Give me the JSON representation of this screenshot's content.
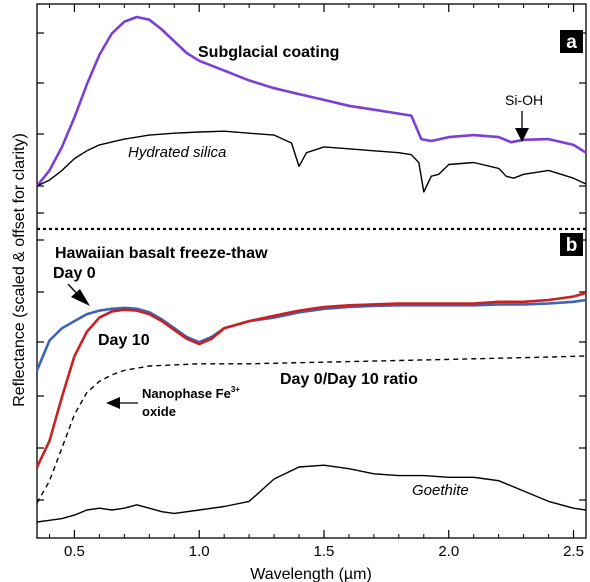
{
  "chart_data": {
    "type": "line",
    "xlabel": "Wavelength (µm)",
    "ylabel": "Reflectance (scaled & offset for clarity)",
    "xlim": [
      0.35,
      2.55
    ],
    "xticks": [
      "0.5",
      "1.0",
      "1.5",
      "2.0",
      "2.5"
    ],
    "panels": [
      {
        "tag": "a",
        "series": [
          {
            "name": "Subglacial coating",
            "color": "#7b3fd6",
            "x": [
              0.35,
              0.4,
              0.45,
              0.5,
              0.55,
              0.6,
              0.65,
              0.7,
              0.75,
              0.8,
              0.85,
              0.9,
              0.95,
              1.0,
              1.1,
              1.2,
              1.3,
              1.4,
              1.5,
              1.6,
              1.7,
              1.8,
              1.85,
              1.89,
              1.93,
              2.0,
              2.1,
              2.2,
              2.25,
              2.3,
              2.4,
              2.5,
              2.55
            ],
            "y": [
              0.0,
              0.4,
              1.0,
              1.75,
              2.6,
              3.35,
              3.9,
              4.2,
              4.32,
              4.25,
              4.0,
              3.7,
              3.4,
              3.2,
              2.95,
              2.7,
              2.5,
              2.35,
              2.2,
              2.05,
              1.95,
              1.85,
              1.8,
              1.2,
              1.15,
              1.25,
              1.3,
              1.25,
              1.12,
              1.18,
              1.2,
              1.05,
              0.85
            ]
          },
          {
            "name": "Hydrated silica",
            "color": "#000000",
            "x": [
              0.35,
              0.4,
              0.45,
              0.5,
              0.55,
              0.6,
              0.7,
              0.8,
              0.9,
              1.0,
              1.1,
              1.2,
              1.3,
              1.37,
              1.4,
              1.43,
              1.5,
              1.6,
              1.7,
              1.8,
              1.85,
              1.88,
              1.9,
              1.93,
              1.96,
              2.0,
              2.1,
              2.2,
              2.23,
              2.26,
              2.3,
              2.4,
              2.5,
              2.55
            ],
            "y": [
              0.0,
              0.15,
              0.4,
              0.7,
              0.9,
              1.05,
              1.2,
              1.3,
              1.35,
              1.38,
              1.4,
              1.35,
              1.3,
              1.1,
              0.5,
              0.85,
              1.0,
              0.95,
              0.9,
              0.85,
              0.8,
              0.6,
              -0.15,
              0.25,
              0.3,
              0.55,
              0.6,
              0.45,
              0.25,
              0.2,
              0.3,
              0.4,
              0.2,
              0.05
            ]
          }
        ],
        "annotations": [
          "Subglacial coating",
          "Hydrated silica",
          "Si-OH"
        ]
      },
      {
        "tag": "b",
        "title": "Hawaiian basalt freeze-thaw",
        "series": [
          {
            "name": "Day 0",
            "color": "#3b63b8",
            "x": [
              0.35,
              0.4,
              0.45,
              0.5,
              0.55,
              0.6,
              0.65,
              0.7,
              0.75,
              0.8,
              0.85,
              0.9,
              0.95,
              1.0,
              1.05,
              1.1,
              1.2,
              1.3,
              1.4,
              1.5,
              1.6,
              1.7,
              1.8,
              1.9,
              2.0,
              2.1,
              2.2,
              2.3,
              2.4,
              2.5,
              2.55
            ],
            "y": [
              0.6,
              0.77,
              0.84,
              0.88,
              0.92,
              0.94,
              0.95,
              0.955,
              0.95,
              0.93,
              0.89,
              0.84,
              0.79,
              0.76,
              0.79,
              0.84,
              0.88,
              0.9,
              0.93,
              0.95,
              0.96,
              0.967,
              0.97,
              0.97,
              0.97,
              0.97,
              0.975,
              0.975,
              0.98,
              0.99,
              1.0
            ]
          },
          {
            "name": "Day 10",
            "color": "#cc2020",
            "x": [
              0.35,
              0.4,
              0.45,
              0.5,
              0.55,
              0.6,
              0.65,
              0.7,
              0.75,
              0.8,
              0.85,
              0.9,
              0.95,
              1.0,
              1.05,
              1.1,
              1.2,
              1.3,
              1.4,
              1.5,
              1.6,
              1.7,
              1.8,
              1.9,
              2.0,
              2.1,
              2.2,
              2.3,
              2.4,
              2.5,
              2.55
            ],
            "y": [
              0.05,
              0.2,
              0.45,
              0.68,
              0.82,
              0.9,
              0.935,
              0.945,
              0.94,
              0.92,
              0.88,
              0.83,
              0.78,
              0.75,
              0.78,
              0.84,
              0.88,
              0.91,
              0.94,
              0.96,
              0.97,
              0.975,
              0.98,
              0.98,
              0.98,
              0.98,
              0.99,
              0.99,
              1.0,
              1.02,
              1.04
            ]
          },
          {
            "name": "Day 0/Day 10 ratio",
            "color": "#000000",
            "dashed": true,
            "x": [
              0.35,
              0.4,
              0.45,
              0.5,
              0.55,
              0.6,
              0.65,
              0.7,
              0.8,
              0.9,
              1.0,
              1.1,
              1.2,
              1.4,
              1.6,
              1.8,
              2.0,
              2.2,
              2.4,
              2.55
            ],
            "y": [
              0.0,
              0.1,
              0.25,
              0.4,
              0.5,
              0.55,
              0.58,
              0.6,
              0.62,
              0.625,
              0.63,
              0.63,
              0.63,
              0.635,
              0.64,
              0.645,
              0.65,
              0.655,
              0.66,
              0.665
            ]
          },
          {
            "name": "Goethite",
            "color": "#000000",
            "x": [
              0.35,
              0.4,
              0.45,
              0.5,
              0.55,
              0.6,
              0.65,
              0.7,
              0.75,
              0.8,
              0.85,
              0.9,
              1.0,
              1.1,
              1.2,
              1.3,
              1.4,
              1.5,
              1.6,
              1.7,
              1.8,
              1.9,
              2.0,
              2.1,
              2.15,
              2.2,
              2.3,
              2.4,
              2.5,
              2.55
            ],
            "y": [
              0.0,
              0.01,
              0.02,
              0.04,
              0.07,
              0.08,
              0.07,
              0.08,
              0.1,
              0.08,
              0.06,
              0.05,
              0.07,
              0.09,
              0.12,
              0.25,
              0.32,
              0.33,
              0.31,
              0.28,
              0.27,
              0.27,
              0.26,
              0.26,
              0.25,
              0.24,
              0.18,
              0.12,
              0.08,
              0.07
            ]
          }
        ],
        "annotations": [
          "Day 0",
          "Day 10",
          "Day 0/Day 10 ratio",
          "Nanophase Fe",
          "3+",
          "oxide",
          "Goethite"
        ]
      }
    ]
  }
}
